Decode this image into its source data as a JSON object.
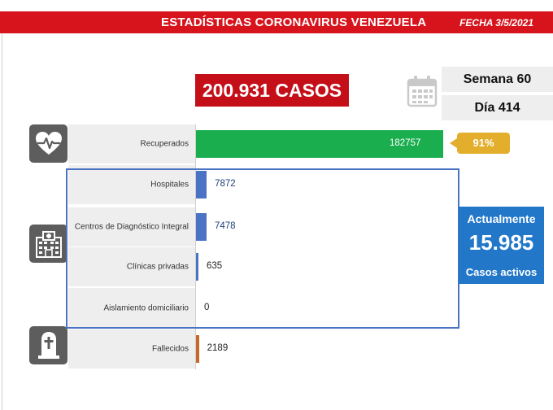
{
  "header": {
    "title": "ESTADÍSTICAS CORONAVIRUS VENEZUELA",
    "date": "FECHA 3/5/2021"
  },
  "summary": {
    "total_cases": "200.931 CASOS",
    "week": "Semana 60",
    "day": "Día 414"
  },
  "active": {
    "line1": "Actualmente",
    "count": "15.985",
    "line3": "Casos activos"
  },
  "recovered_pct": "91%",
  "icons": [
    "heartbeat-icon",
    "hospital-icon",
    "tombstone-icon",
    "calendar-icon"
  ],
  "colors": {
    "header": "#d7141c",
    "recovered": "#1aae4f",
    "active_cases": "#4a73c4",
    "deceased": "#c8692a",
    "badge": "#e3ae2b",
    "active_box": "#2277c9"
  },
  "chart_data": {
    "type": "bar",
    "orientation": "horizontal",
    "categories": [
      "Recuperados",
      "Hospitales",
      "Centros de Diagnóstico Integral",
      "Clínicas privadas",
      "Aislamiento domiciliario",
      "Fallecidos"
    ],
    "values": [
      182757,
      7872,
      7478,
      635,
      0,
      2189
    ],
    "value_labels": [
      "182757",
      "7872",
      "7478",
      "635",
      "0",
      "2189"
    ]
  }
}
